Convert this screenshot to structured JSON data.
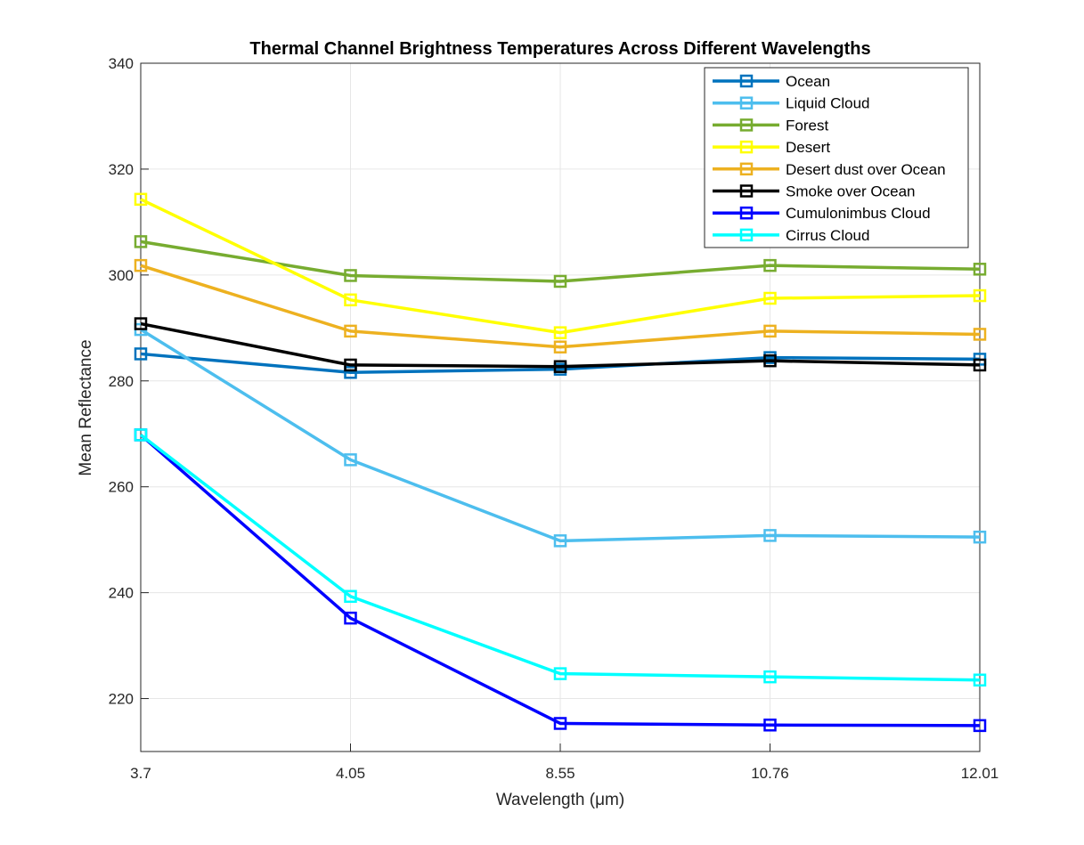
{
  "chart_data": {
    "type": "line",
    "title": "Thermal Channel Brightness Temperatures Across Different Wavelengths",
    "xlabel": "Wavelength (μm)",
    "ylabel": "Mean Reflectance",
    "x": [
      "3.7",
      "4.05",
      "8.55",
      "10.76",
      "12.01"
    ],
    "ylim": [
      210,
      340
    ],
    "yticks": [
      220,
      240,
      260,
      280,
      300,
      320,
      340
    ],
    "grid": true,
    "legend_position": "top-right",
    "marker": "square",
    "series": [
      {
        "name": "Ocean",
        "color": "#0072BD",
        "values": [
          285.1,
          281.6,
          282.2,
          284.4,
          284.1
        ]
      },
      {
        "name": "Liquid Cloud",
        "color": "#4DBEEE",
        "values": [
          289.7,
          265.1,
          249.8,
          250.8,
          250.5
        ]
      },
      {
        "name": "Forest",
        "color": "#77AC30",
        "values": [
          306.3,
          299.9,
          298.8,
          301.8,
          301.1
        ]
      },
      {
        "name": "Desert",
        "color": "#FFFF00",
        "values": [
          314.3,
          295.3,
          289.1,
          295.6,
          296.1
        ]
      },
      {
        "name": "Desert dust over Ocean",
        "color": "#EDB120",
        "values": [
          301.8,
          289.4,
          286.4,
          289.4,
          288.8
        ]
      },
      {
        "name": "Smoke over Ocean",
        "color": "#000000",
        "values": [
          290.8,
          283.0,
          282.7,
          283.8,
          283.0
        ]
      },
      {
        "name": "Cumulonimbus Cloud",
        "color": "#0000FF",
        "values": [
          269.8,
          235.2,
          215.3,
          215.0,
          214.9
        ]
      },
      {
        "name": "Cirrus Cloud",
        "color": "#00FFFF",
        "values": [
          269.8,
          239.3,
          224.7,
          224.1,
          223.5
        ]
      }
    ]
  }
}
